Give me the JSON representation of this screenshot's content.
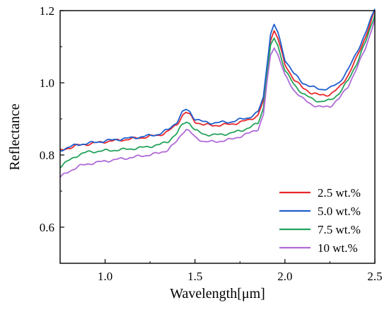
{
  "chart_data": {
    "type": "line",
    "title": "",
    "xlabel": "Wavelength[μm]",
    "ylabel": "Reflectance",
    "xlim": [
      0.75,
      2.5
    ],
    "ylim": [
      0.5,
      1.2
    ],
    "x_ticks": [
      1.0,
      1.5,
      2.0,
      2.5
    ],
    "x_tick_labels": [
      "1.0",
      "1.5",
      "2.0",
      "2.5"
    ],
    "y_ticks": [
      0.6,
      0.8,
      1.0,
      1.2
    ],
    "y_tick_labels": [
      "0.6",
      "0.8",
      "1.0",
      "1.2"
    ],
    "grid": false,
    "legend_position": "bottom-right",
    "x": [
      0.75,
      0.8,
      0.85,
      0.9,
      1.0,
      1.1,
      1.2,
      1.3,
      1.35,
      1.4,
      1.43,
      1.45,
      1.47,
      1.5,
      1.55,
      1.6,
      1.7,
      1.8,
      1.85,
      1.88,
      1.9,
      1.92,
      1.94,
      1.96,
      2.0,
      2.05,
      2.1,
      2.15,
      2.2,
      2.25,
      2.3,
      2.35,
      2.4,
      2.45,
      2.5
    ],
    "series": [
      {
        "name": "2.5 wt.%",
        "color": "#e8272a",
        "values": [
          0.812,
          0.82,
          0.827,
          0.83,
          0.837,
          0.842,
          0.848,
          0.855,
          0.865,
          0.885,
          0.91,
          0.918,
          0.912,
          0.892,
          0.884,
          0.882,
          0.885,
          0.897,
          0.91,
          0.95,
          1.04,
          1.12,
          1.145,
          1.125,
          1.05,
          1.01,
          0.985,
          0.972,
          0.965,
          0.968,
          0.985,
          1.02,
          1.07,
          1.13,
          1.2
        ]
      },
      {
        "name": "5.0 wt.%",
        "color": "#1f5fcf",
        "values": [
          0.813,
          0.822,
          0.829,
          0.832,
          0.839,
          0.845,
          0.85,
          0.858,
          0.87,
          0.892,
          0.918,
          0.926,
          0.92,
          0.9,
          0.891,
          0.889,
          0.892,
          0.904,
          0.918,
          0.96,
          1.05,
          1.135,
          1.16,
          1.14,
          1.065,
          1.025,
          1.0,
          0.988,
          0.982,
          0.985,
          1.0,
          1.035,
          1.085,
          1.14,
          1.205
        ]
      },
      {
        "name": "7.5 wt.%",
        "color": "#23a35a",
        "values": [
          0.768,
          0.785,
          0.8,
          0.808,
          0.812,
          0.815,
          0.82,
          0.828,
          0.838,
          0.86,
          0.885,
          0.893,
          0.888,
          0.868,
          0.858,
          0.855,
          0.86,
          0.875,
          0.888,
          0.93,
          1.02,
          1.1,
          1.123,
          1.105,
          1.035,
          0.995,
          0.97,
          0.955,
          0.948,
          0.951,
          0.97,
          1.005,
          1.055,
          1.115,
          1.19
        ]
      },
      {
        "name": "10 wt.%",
        "color": "#b06ad8",
        "values": [
          0.738,
          0.755,
          0.768,
          0.775,
          0.783,
          0.79,
          0.797,
          0.805,
          0.815,
          0.838,
          0.862,
          0.871,
          0.866,
          0.848,
          0.838,
          0.836,
          0.843,
          0.86,
          0.872,
          0.91,
          1.0,
          1.075,
          1.1,
          1.08,
          1.02,
          0.98,
          0.955,
          0.94,
          0.932,
          0.935,
          0.955,
          0.99,
          1.04,
          1.1,
          1.175
        ]
      }
    ]
  }
}
